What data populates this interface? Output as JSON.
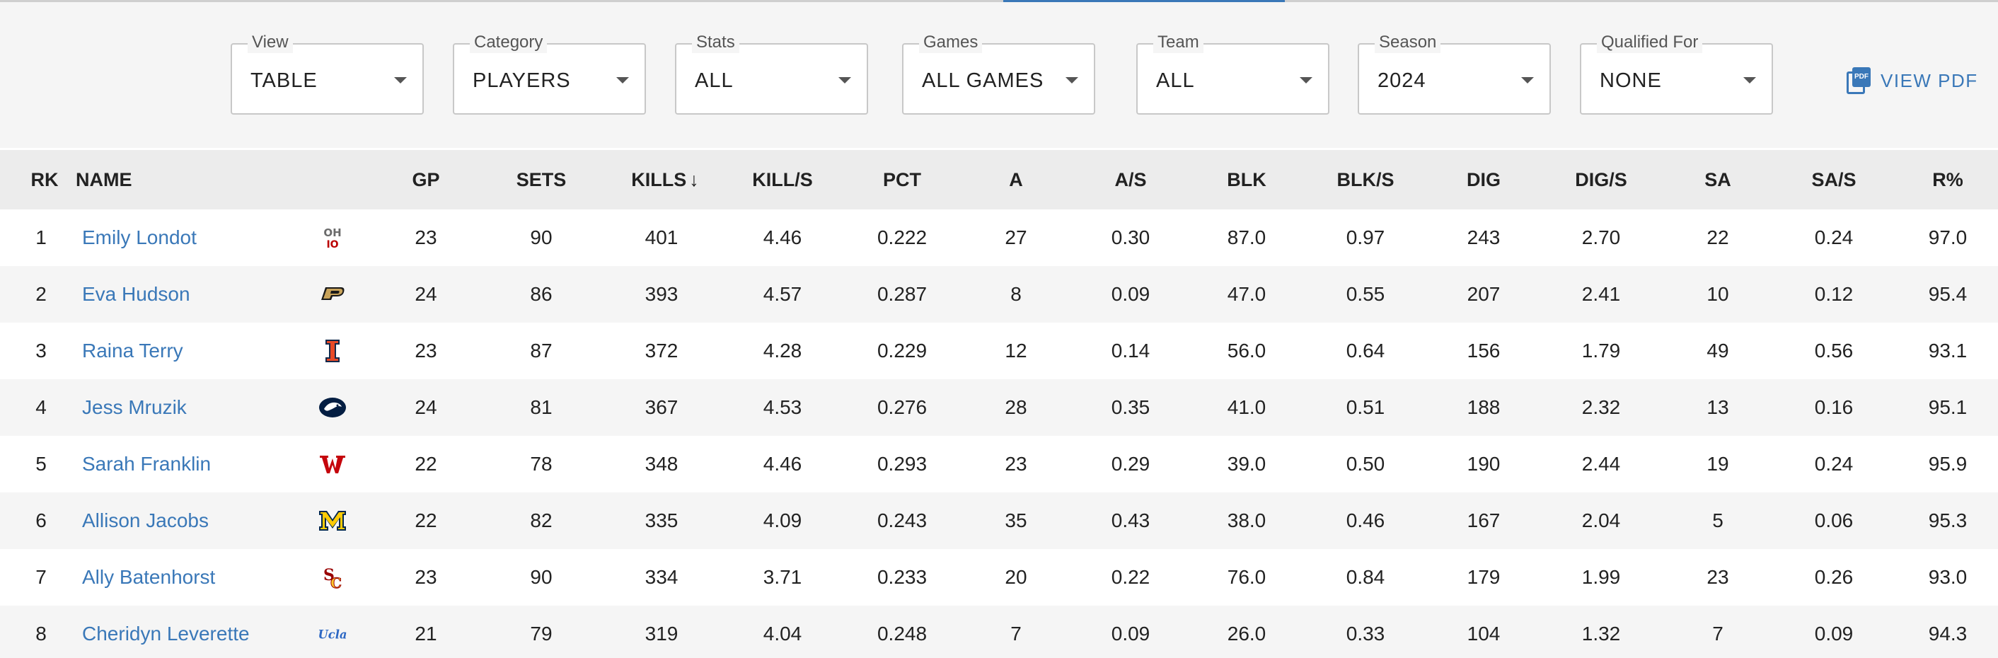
{
  "filters": [
    {
      "label": "View",
      "value": "TABLE"
    },
    {
      "label": "Category",
      "value": "PLAYERS"
    },
    {
      "label": "Stats",
      "value": "ALL"
    },
    {
      "label": "Games",
      "value": "ALL GAMES"
    },
    {
      "label": "Team",
      "value": "ALL"
    },
    {
      "label": "Season",
      "value": "2024"
    },
    {
      "label": "Qualified For",
      "value": "NONE"
    }
  ],
  "view_pdf": {
    "label": "VIEW PDF",
    "icon": "pdf-icon",
    "icon_text": "PDF"
  },
  "accent_color": "#3a78b8",
  "columns": {
    "rk": "RK",
    "name": "NAME",
    "gp": "GP",
    "sets": "SETS",
    "kills": "KILLS",
    "kills_sort": "↓",
    "kill_s": "KILL/S",
    "pct": "PCT",
    "a": "A",
    "a_s": "A/S",
    "blk": "BLK",
    "blk_s": "BLK/S",
    "dig": "DIG",
    "dig_s": "DIG/S",
    "sa": "SA",
    "sa_s": "SA/S",
    "r_pct": "R%"
  },
  "rows": [
    {
      "rk": "1",
      "name": "Emily Londot",
      "logo": "ohio-state-logo",
      "gp": "23",
      "sets": "90",
      "kills": "401",
      "kill_s": "4.46",
      "pct": "0.222",
      "a": "27",
      "a_s": "0.30",
      "blk": "87.0",
      "blk_s": "0.97",
      "dig": "243",
      "dig_s": "2.70",
      "sa": "22",
      "sa_s": "0.24",
      "r_pct": "97.0"
    },
    {
      "rk": "2",
      "name": "Eva Hudson",
      "logo": "purdue-logo",
      "gp": "24",
      "sets": "86",
      "kills": "393",
      "kill_s": "4.57",
      "pct": "0.287",
      "a": "8",
      "a_s": "0.09",
      "blk": "47.0",
      "blk_s": "0.55",
      "dig": "207",
      "dig_s": "2.41",
      "sa": "10",
      "sa_s": "0.12",
      "r_pct": "95.4"
    },
    {
      "rk": "3",
      "name": "Raina Terry",
      "logo": "illinois-logo",
      "gp": "23",
      "sets": "87",
      "kills": "372",
      "kill_s": "4.28",
      "pct": "0.229",
      "a": "12",
      "a_s": "0.14",
      "blk": "56.0",
      "blk_s": "0.64",
      "dig": "156",
      "dig_s": "1.79",
      "sa": "49",
      "sa_s": "0.56",
      "r_pct": "93.1"
    },
    {
      "rk": "4",
      "name": "Jess Mruzik",
      "logo": "penn-state-logo",
      "gp": "24",
      "sets": "81",
      "kills": "367",
      "kill_s": "4.53",
      "pct": "0.276",
      "a": "28",
      "a_s": "0.35",
      "blk": "41.0",
      "blk_s": "0.51",
      "dig": "188",
      "dig_s": "2.32",
      "sa": "13",
      "sa_s": "0.16",
      "r_pct": "95.1"
    },
    {
      "rk": "5",
      "name": "Sarah Franklin",
      "logo": "wisconsin-logo",
      "gp": "22",
      "sets": "78",
      "kills": "348",
      "kill_s": "4.46",
      "pct": "0.293",
      "a": "23",
      "a_s": "0.29",
      "blk": "39.0",
      "blk_s": "0.50",
      "dig": "190",
      "dig_s": "2.44",
      "sa": "19",
      "sa_s": "0.24",
      "r_pct": "95.9"
    },
    {
      "rk": "6",
      "name": "Allison Jacobs",
      "logo": "michigan-logo",
      "gp": "22",
      "sets": "82",
      "kills": "335",
      "kill_s": "4.09",
      "pct": "0.243",
      "a": "35",
      "a_s": "0.43",
      "blk": "38.0",
      "blk_s": "0.46",
      "dig": "167",
      "dig_s": "2.04",
      "sa": "5",
      "sa_s": "0.06",
      "r_pct": "95.3"
    },
    {
      "rk": "7",
      "name": "Ally Batenhorst",
      "logo": "usc-logo",
      "gp": "23",
      "sets": "90",
      "kills": "334",
      "kill_s": "3.71",
      "pct": "0.233",
      "a": "20",
      "a_s": "0.22",
      "blk": "76.0",
      "blk_s": "0.84",
      "dig": "179",
      "dig_s": "1.99",
      "sa": "23",
      "sa_s": "0.26",
      "r_pct": "93.0"
    },
    {
      "rk": "8",
      "name": "Cheridyn Leverette",
      "logo": "ucla-logo",
      "logo_text": "Ucla",
      "gp": "21",
      "sets": "79",
      "kills": "319",
      "kill_s": "4.04",
      "pct": "0.248",
      "a": "7",
      "a_s": "0.09",
      "blk": "26.0",
      "blk_s": "0.33",
      "dig": "104",
      "dig_s": "1.32",
      "sa": "7",
      "sa_s": "0.09",
      "r_pct": "94.3"
    }
  ]
}
